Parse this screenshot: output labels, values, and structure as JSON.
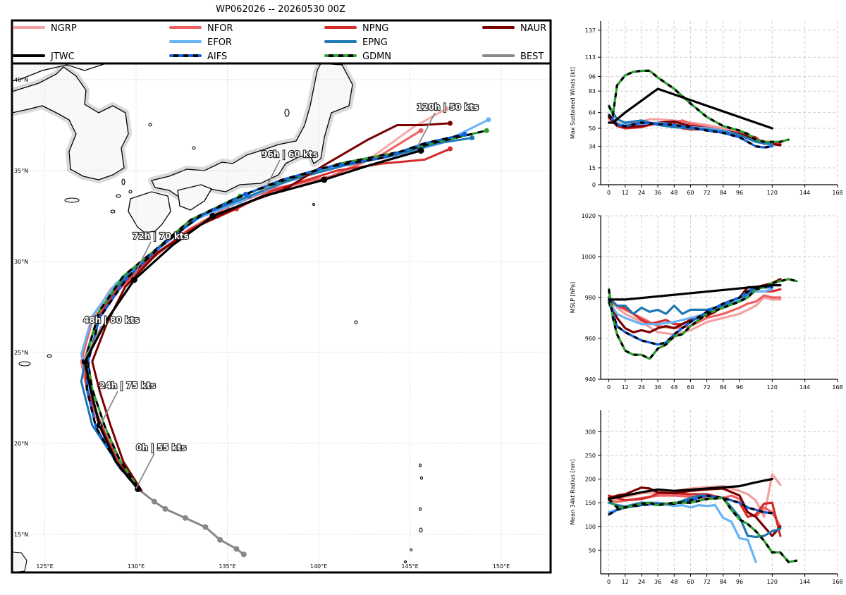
{
  "title": "WP062026 -- 20260530 00Z",
  "map": {
    "lat_ticks": [
      40,
      35,
      30,
      25,
      20,
      15
    ],
    "lon_ticks": [
      125,
      130,
      135,
      140,
      145,
      150
    ],
    "lat_labels": [
      "40°N",
      "35°N",
      "30°N",
      "25°N",
      "20°N",
      "15°N"
    ],
    "lon_labels": [
      "125°E",
      "130°E",
      "135°E",
      "140°E",
      "145°E",
      "150°E"
    ]
  },
  "legend": [
    {
      "name": "NGRP",
      "color": "#f4a0a0",
      "style": "solid"
    },
    {
      "name": "NFOR",
      "color": "#f06060",
      "style": "solid"
    },
    {
      "name": "NPNG",
      "color": "#d42b2b",
      "style": "solid"
    },
    {
      "name": "NAUR",
      "color": "#7a0000",
      "style": "solid"
    },
    {
      "name": "JTWC",
      "color": "#000000",
      "style": "solid"
    },
    {
      "name": "EFOR",
      "color": "#66b3f5",
      "style": "solid"
    },
    {
      "name": "AIFS",
      "color": "#1060e0",
      "style": "dashed"
    },
    {
      "name": "EPNG",
      "color": "#1f77b4",
      "style": "solid"
    },
    {
      "name": "GDMN",
      "color": "#2ca02c",
      "style": "dashed"
    },
    {
      "name": "BEST",
      "color": "#888888",
      "style": "solid"
    }
  ],
  "annotations": [
    "0h | 55 kts",
    "24h | 75 kts",
    "48h | 80 kts",
    "72h | 70 kts",
    "96h | 60 kts",
    "120h | 50 kts"
  ],
  "chart_data": [
    {
      "type": "line",
      "title": "",
      "xlabel": "",
      "ylabel": "Max Sustained Winds [kt]",
      "x_ticks": [
        0,
        12,
        24,
        36,
        48,
        60,
        72,
        84,
        96,
        120,
        144,
        168
      ],
      "y_ticks": [
        0,
        15,
        34,
        50,
        64,
        83,
        96,
        113,
        137
      ],
      "xlim": [
        -6,
        168
      ],
      "ylim": [
        0,
        145
      ],
      "series": [
        {
          "name": "NGRP",
          "x": [
            0,
            6,
            12,
            24,
            30,
            36,
            48,
            60,
            72,
            84,
            96,
            108,
            114,
            120,
            126
          ],
          "y": [
            58,
            52,
            54,
            56,
            58,
            58,
            57,
            55,
            53,
            50,
            47,
            40,
            37,
            38,
            36
          ]
        },
        {
          "name": "NFOR",
          "x": [
            0,
            6,
            12,
            24,
            36,
            48,
            54,
            60,
            72,
            84,
            96,
            108,
            120,
            126
          ],
          "y": [
            62,
            55,
            52,
            52,
            54,
            55,
            57,
            54,
            51,
            48,
            46,
            40,
            37,
            36
          ]
        },
        {
          "name": "NPNG",
          "x": [
            0,
            6,
            12,
            24,
            36,
            48,
            54,
            60,
            72,
            84,
            96,
            108,
            114,
            120,
            126
          ],
          "y": [
            60,
            52,
            50,
            51,
            55,
            54,
            50,
            49,
            49,
            48,
            45,
            42,
            36,
            36,
            36
          ]
        },
        {
          "name": "NAUR",
          "x": [
            0,
            6,
            12,
            24,
            36,
            48,
            60,
            72,
            84,
            96,
            108,
            120,
            126
          ],
          "y": [
            60,
            53,
            51,
            52,
            55,
            56,
            52,
            50,
            48,
            45,
            40,
            36,
            35
          ]
        },
        {
          "name": "EFOR",
          "x": [
            0,
            6,
            12,
            24,
            36,
            48,
            60,
            72,
            84,
            96,
            108,
            120
          ],
          "y": [
            62,
            54,
            53,
            54,
            55,
            53,
            51,
            50,
            48,
            44,
            38,
            35
          ]
        },
        {
          "name": "AIFS",
          "x": [
            0,
            6,
            12,
            24,
            36,
            48,
            60,
            72,
            84,
            96,
            108,
            114,
            120
          ],
          "y": [
            62,
            53,
            52,
            55,
            54,
            53,
            51,
            48,
            46,
            42,
            34,
            33,
            34
          ]
        },
        {
          "name": "EPNG",
          "x": [
            0,
            6,
            12,
            24,
            36,
            48,
            60,
            72,
            84,
            96,
            108,
            120
          ],
          "y": [
            70,
            58,
            55,
            57,
            53,
            51,
            50,
            49,
            47,
            44,
            38,
            36
          ]
        },
        {
          "name": "GDMN",
          "x": [
            0,
            3,
            6,
            12,
            18,
            24,
            30,
            36,
            48,
            60,
            72,
            84,
            96,
            102,
            108,
            114,
            120,
            126,
            132
          ],
          "y": [
            70,
            62,
            88,
            97,
            100,
            101,
            101,
            95,
            85,
            72,
            60,
            52,
            48,
            45,
            40,
            38,
            38,
            38,
            40
          ]
        },
        {
          "name": "JTWC",
          "x": [
            0,
            3,
            12,
            36,
            120
          ],
          "y": [
            55,
            55,
            64,
            85,
            50
          ]
        }
      ]
    },
    {
      "type": "line",
      "title": "",
      "xlabel": "",
      "ylabel": "MSLP [hPa]",
      "x_ticks": [
        0,
        12,
        24,
        36,
        48,
        60,
        72,
        84,
        96,
        120,
        144,
        168
      ],
      "y_ticks": [
        940,
        960,
        980,
        1000,
        1020
      ],
      "xlim": [
        -6,
        168
      ],
      "ylim": [
        940,
        1020
      ],
      "series": [
        {
          "name": "NGRP",
          "x": [
            0,
            6,
            12,
            24,
            36,
            48,
            60,
            72,
            84,
            96,
            102,
            108,
            114,
            120,
            126
          ],
          "y": [
            980,
            975,
            972,
            968,
            963,
            962,
            964,
            968,
            970,
            972,
            974,
            976,
            980,
            979,
            979
          ]
        },
        {
          "name": "NFOR",
          "x": [
            0,
            6,
            12,
            24,
            36,
            48,
            60,
            72,
            84,
            96,
            102,
            108,
            114,
            120,
            126
          ],
          "y": [
            979,
            976,
            974,
            970,
            966,
            965,
            966,
            970,
            972,
            975,
            977,
            978,
            981,
            980,
            980
          ]
        },
        {
          "name": "NPNG",
          "x": [
            0,
            6,
            12,
            24,
            30,
            36,
            42,
            48,
            54,
            60,
            66,
            72,
            84,
            96,
            102,
            108,
            114,
            120,
            126
          ],
          "y": [
            980,
            976,
            975,
            969,
            967,
            968,
            969,
            967,
            967,
            969,
            970,
            972,
            975,
            979,
            981,
            983,
            983,
            983,
            984
          ]
        },
        {
          "name": "NAUR",
          "x": [
            0,
            6,
            12,
            18,
            24,
            30,
            36,
            42,
            48,
            54,
            60,
            66,
            72,
            78,
            84,
            90,
            96,
            102,
            108,
            114,
            120,
            126
          ],
          "y": [
            980,
            970,
            965,
            963,
            964,
            963,
            965,
            966,
            965,
            967,
            969,
            971,
            971,
            973,
            976,
            978,
            980,
            985,
            985,
            986,
            987,
            989
          ]
        },
        {
          "name": "EFOR",
          "x": [
            0,
            6,
            12,
            24,
            36,
            48,
            60,
            72,
            84,
            96,
            102,
            108,
            114,
            120
          ],
          "y": [
            978,
            972,
            970,
            967,
            967,
            968,
            970,
            972,
            976,
            979,
            981,
            983,
            983,
            984
          ]
        },
        {
          "name": "AIFS",
          "x": [
            0,
            6,
            12,
            24,
            30,
            36,
            42,
            48,
            60,
            72,
            84,
            96,
            102,
            108,
            114,
            120
          ],
          "y": [
            978,
            966,
            963,
            959,
            958,
            957,
            958,
            962,
            968,
            973,
            977,
            980,
            983,
            985,
            985,
            985
          ]
        },
        {
          "name": "EPNG",
          "x": [
            0,
            6,
            12,
            18,
            24,
            30,
            36,
            42,
            48,
            54,
            60,
            66,
            72,
            84,
            96,
            102,
            108,
            114,
            120
          ],
          "y": [
            980,
            976,
            976,
            972,
            975,
            973,
            974,
            972,
            976,
            972,
            974,
            974,
            974,
            976,
            978,
            982,
            984,
            985,
            985
          ]
        },
        {
          "name": "GDMN",
          "x": [
            0,
            3,
            6,
            12,
            18,
            24,
            30,
            36,
            42,
            48,
            54,
            60,
            72,
            84,
            96,
            102,
            108,
            114,
            120,
            126,
            132,
            138
          ],
          "y": [
            984,
            970,
            962,
            954,
            952,
            952,
            950,
            955,
            957,
            961,
            962,
            966,
            972,
            975,
            978,
            980,
            984,
            985,
            987,
            988,
            989,
            988
          ]
        },
        {
          "name": "JTWC",
          "x": [
            0,
            12,
            120,
            126
          ],
          "y": [
            979,
            979,
            986,
            986
          ]
        }
      ]
    },
    {
      "type": "line",
      "title": "",
      "xlabel": "",
      "ylabel": "Mean 34kt Radius [nm]",
      "x_ticks": [
        0,
        12,
        24,
        36,
        48,
        60,
        72,
        84,
        96,
        120,
        144,
        168
      ],
      "y_ticks": [
        50,
        100,
        150,
        200,
        250,
        300
      ],
      "xlim": [
        -6,
        168
      ],
      "ylim": [
        0,
        345
      ],
      "series": [
        {
          "name": "NGRP",
          "x": [
            0,
            6,
            12,
            24,
            36,
            48,
            60,
            72,
            84,
            90,
            96,
            102,
            108,
            114,
            120,
            126
          ],
          "y": [
            160,
            158,
            162,
            170,
            172,
            175,
            180,
            183,
            185,
            180,
            175,
            168,
            155,
            120,
            210,
            188
          ]
        },
        {
          "name": "NFOR",
          "x": [
            0,
            6,
            12,
            24,
            36,
            48,
            60,
            72,
            84,
            90,
            96,
            102,
            108,
            114,
            120,
            126
          ],
          "y": [
            155,
            152,
            155,
            160,
            165,
            165,
            163,
            160,
            160,
            165,
            158,
            130,
            120,
            140,
            130,
            100
          ]
        },
        {
          "name": "NPNG",
          "x": [
            0,
            6,
            12,
            24,
            30,
            36,
            48,
            60,
            72,
            84,
            96,
            102,
            108,
            114,
            120,
            126
          ],
          "y": [
            165,
            160,
            155,
            158,
            162,
            170,
            170,
            168,
            168,
            160,
            150,
            120,
            125,
            148,
            150,
            80
          ]
        },
        {
          "name": "NAUR",
          "x": [
            0,
            6,
            12,
            18,
            24,
            30,
            36,
            48,
            60,
            72,
            84,
            96,
            102,
            108,
            114,
            120,
            126
          ],
          "y": [
            160,
            165,
            168,
            175,
            182,
            180,
            172,
            170,
            175,
            178,
            180,
            165,
            130,
            120,
            100,
            80,
            100
          ]
        },
        {
          "name": "EFOR",
          "x": [
            0,
            6,
            12,
            24,
            36,
            48,
            54,
            60,
            66,
            72,
            78,
            84,
            90,
            96,
            102,
            108
          ],
          "y": [
            130,
            135,
            140,
            150,
            150,
            143,
            145,
            140,
            145,
            143,
            145,
            118,
            110,
            75,
            72,
            25
          ]
        },
        {
          "name": "AIFS",
          "x": [
            0,
            6,
            12,
            24,
            36,
            48,
            60,
            72,
            84,
            96,
            102,
            108,
            114,
            120
          ],
          "y": [
            125,
            135,
            140,
            145,
            148,
            148,
            155,
            165,
            160,
            150,
            140,
            135,
            130,
            128
          ]
        },
        {
          "name": "EPNG",
          "x": [
            0,
            6,
            12,
            24,
            36,
            48,
            60,
            66,
            72,
            84,
            96,
            102,
            108,
            114,
            120,
            126
          ],
          "y": [
            150,
            145,
            142,
            150,
            145,
            148,
            160,
            165,
            165,
            160,
            120,
            80,
            78,
            80,
            90,
            95
          ]
        },
        {
          "name": "GDMN",
          "x": [
            0,
            6,
            12,
            24,
            30,
            36,
            48,
            60,
            72,
            84,
            90,
            96,
            102,
            108,
            114,
            120,
            126,
            132,
            138
          ],
          "y": [
            158,
            140,
            140,
            148,
            150,
            145,
            150,
            150,
            158,
            160,
            135,
            115,
            105,
            90,
            70,
            45,
            45,
            25,
            28
          ]
        },
        {
          "name": "JTWC",
          "x": [
            0,
            12,
            24,
            36,
            48,
            72,
            96,
            108,
            120
          ],
          "y": [
            158,
            165,
            172,
            178,
            175,
            180,
            185,
            193,
            200
          ]
        }
      ]
    }
  ]
}
